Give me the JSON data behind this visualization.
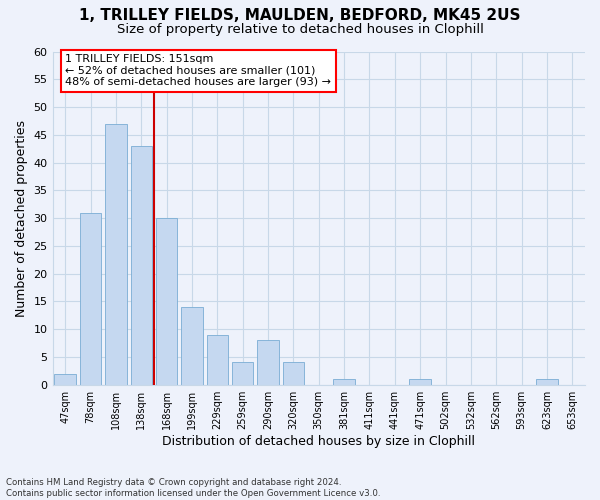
{
  "title": "1, TRILLEY FIELDS, MAULDEN, BEDFORD, MK45 2US",
  "subtitle": "Size of property relative to detached houses in Clophill",
  "xlabel": "Distribution of detached houses by size in Clophill",
  "ylabel": "Number of detached properties",
  "categories": [
    "47sqm",
    "78sqm",
    "108sqm",
    "138sqm",
    "168sqm",
    "199sqm",
    "229sqm",
    "259sqm",
    "290sqm",
    "320sqm",
    "350sqm",
    "381sqm",
    "411sqm",
    "441sqm",
    "471sqm",
    "502sqm",
    "532sqm",
    "562sqm",
    "593sqm",
    "623sqm",
    "653sqm"
  ],
  "values": [
    2,
    31,
    47,
    43,
    30,
    14,
    9,
    4,
    8,
    4,
    0,
    1,
    0,
    0,
    1,
    0,
    0,
    0,
    0,
    1,
    0
  ],
  "bar_color": "#c5d8f0",
  "bar_edge_color": "#7aadd4",
  "grid_color": "#c8d8e8",
  "background_color": "#eef2fb",
  "annotation_box_text": "1 TRILLEY FIELDS: 151sqm\n← 52% of detached houses are smaller (101)\n48% of semi-detached houses are larger (93) →",
  "annotation_box_color": "white",
  "annotation_box_edge_color": "red",
  "ylim": [
    0,
    60
  ],
  "yticks": [
    0,
    5,
    10,
    15,
    20,
    25,
    30,
    35,
    40,
    45,
    50,
    55,
    60
  ],
  "footer": "Contains HM Land Registry data © Crown copyright and database right 2024.\nContains public sector information licensed under the Open Government Licence v3.0.",
  "red_line_color": "#cc0000",
  "title_fontsize": 11,
  "subtitle_fontsize": 9.5,
  "annotation_fontsize": 8,
  "ylabel_fontsize": 9,
  "xlabel_fontsize": 9
}
